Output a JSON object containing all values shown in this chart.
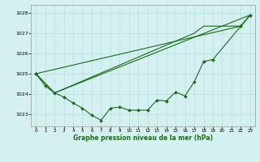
{
  "title": "Graphe pression niveau de la mer (hPa)",
  "bg_color": "#d4f0f0",
  "grid_color": "#b8e0e0",
  "line_color": "#1a6b1a",
  "xlim": [
    -0.5,
    23.5
  ],
  "ylim": [
    1022.4,
    1028.4
  ],
  "yticks": [
    1023,
    1024,
    1025,
    1026,
    1027,
    1028
  ],
  "xticks": [
    0,
    1,
    2,
    3,
    4,
    5,
    6,
    7,
    8,
    9,
    10,
    11,
    12,
    13,
    14,
    15,
    16,
    17,
    18,
    19,
    20,
    21,
    22,
    23
  ],
  "series_main": [
    1025.0,
    1024.4,
    1024.05,
    1023.85,
    1023.55,
    1023.3,
    1022.95,
    1022.7,
    1023.3,
    1023.35,
    1023.2,
    1023.2,
    1023.2,
    1023.7,
    1023.65,
    1024.1,
    1023.9,
    1024.6,
    1025.6,
    1025.7,
    null,
    null,
    1027.35,
    1027.9
  ],
  "line2_x": [
    0,
    22,
    23
  ],
  "line2_y": [
    1025.0,
    1027.35,
    1027.9
  ],
  "line3_x": [
    0,
    2,
    23
  ],
  "line3_y": [
    1025.0,
    1024.05,
    1027.9
  ],
  "line4_x": [
    0,
    2,
    17,
    18,
    22,
    23
  ],
  "line4_y": [
    1025.0,
    1024.05,
    1027.0,
    1027.35,
    1027.35,
    1027.9
  ]
}
